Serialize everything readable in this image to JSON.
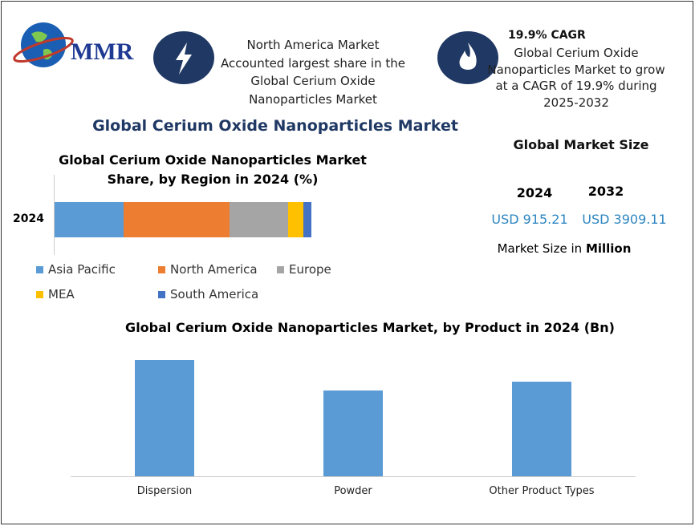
{
  "logo": "MMR",
  "info_left": {
    "lines": [
      "North America Market",
      "Accounted largest share in the",
      "Global Cerium Oxide",
      "Nanoparticles Market"
    ]
  },
  "info_right": {
    "heading": "19.9% CAGR",
    "lines": [
      "Global Cerium Oxide",
      "Nanoparticles Market to grow",
      "at a CAGR of 19.9% during",
      "2025-2032"
    ]
  },
  "main_title": "Global Cerium Oxide Nanoparticles Market",
  "market_size": {
    "title": "Global Market Size",
    "years": [
      "2024",
      "2032"
    ],
    "values": [
      "USD 915.21",
      "USD 3909.11"
    ],
    "unit_prefix": "Market Size in",
    "unit": "Million"
  },
  "chart_data": [
    {
      "type": "stacked_bar",
      "title": "Global Cerium Oxide Nanoparticles Market Share, by Region in 2024 (%)",
      "categories": [
        "2024"
      ],
      "series": [
        {
          "name": "Asia Pacific",
          "color": "#5b9bd5",
          "values": [
            27
          ]
        },
        {
          "name": "North America",
          "color": "#ed7d31",
          "values": [
            41
          ]
        },
        {
          "name": "Europe",
          "color": "#a5a5a5",
          "values": [
            23
          ]
        },
        {
          "name": "MEA",
          "color": "#ffc000",
          "values": [
            6
          ]
        },
        {
          "name": "South America",
          "color": "#4472c4",
          "values": [
            3
          ]
        }
      ]
    },
    {
      "type": "bar",
      "title": "Global Cerium Oxide Nanoparticles Market, by Product in 2024 (Bn)",
      "categories": [
        "Dispersion",
        "Powder",
        "Other Product Types"
      ],
      "values": [
        0.359,
        0.265,
        0.292
      ],
      "color": "#5b9bd5"
    }
  ]
}
